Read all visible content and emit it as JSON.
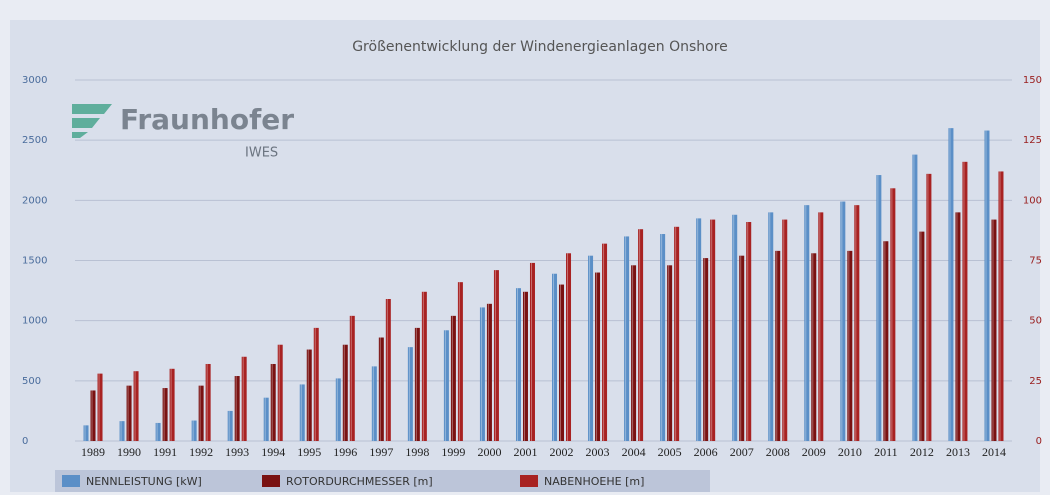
{
  "logo": {
    "name": "Fraunhofer",
    "unit": "IWES"
  },
  "chart_data": {
    "type": "bar",
    "title": "Größenentwicklung der Windenergieanlagen Onshore",
    "categories": [
      "1989",
      "1990",
      "1991",
      "1992",
      "1993",
      "1994",
      "1995",
      "1996",
      "1997",
      "1998",
      "1999",
      "2000",
      "2001",
      "2002",
      "2003",
      "2004",
      "2005",
      "2006",
      "2007",
      "2008",
      "2009",
      "2010",
      "2011",
      "2012",
      "2013",
      "2014"
    ],
    "series": [
      {
        "name": "NENNLEISTUNG [kW]",
        "color": "#5b8fc7",
        "axis": "y",
        "values": [
          130,
          165,
          150,
          170,
          250,
          360,
          470,
          520,
          620,
          780,
          920,
          1110,
          1270,
          1390,
          1540,
          1700,
          1720,
          1850,
          1880,
          1900,
          1960,
          1990,
          2210,
          2380,
          2600,
          2580
        ]
      },
      {
        "name": "ROTORDURCHMESSER [m]",
        "color": "#7a1212",
        "axis": "y2",
        "values": [
          21,
          23,
          22,
          23,
          27,
          32,
          38,
          40,
          43,
          47,
          52,
          57,
          62,
          65,
          70,
          73,
          73,
          76,
          77,
          79,
          78,
          79,
          83,
          87,
          95,
          92
        ]
      },
      {
        "name": "NABENHOEHE [m]",
        "color": "#a82222",
        "axis": "y2",
        "values": [
          28,
          29,
          30,
          32,
          35,
          40,
          47,
          52,
          59,
          62,
          66,
          71,
          74,
          78,
          82,
          88,
          89,
          92,
          91,
          92,
          95,
          98,
          105,
          111,
          116,
          112
        ]
      }
    ],
    "ylim": [
      0,
      3000
    ],
    "yticks": [
      0,
      500,
      1000,
      1500,
      2000,
      2500,
      3000
    ],
    "y2lim": [
      0,
      150
    ],
    "y2ticks": [
      0,
      25,
      50,
      75,
      100,
      125,
      150
    ],
    "grid": true
  }
}
